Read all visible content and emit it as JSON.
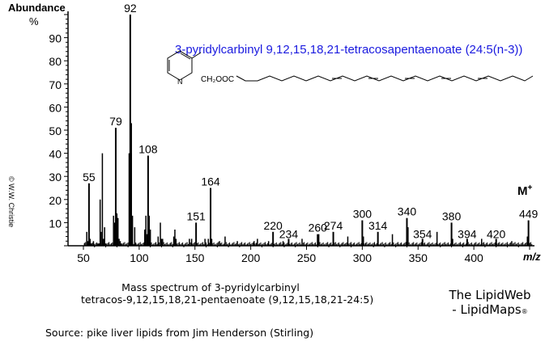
{
  "chart_data": {
    "type": "bar",
    "title": "3-pyridylcarbinyl 9,12,15,18,21-tetracosapentaenoate (24:5(n-3))",
    "xlabel": "m/z",
    "ylabel": "Abundance %",
    "xlim": [
      40,
      460
    ],
    "ylim": [
      0,
      100
    ],
    "xticks": [
      50,
      100,
      150,
      200,
      250,
      300,
      350,
      400
    ],
    "yticks": [
      10,
      20,
      30,
      40,
      50,
      60,
      70,
      80,
      90
    ],
    "grid": false,
    "molecular_ion_label": "M+",
    "labeled_peaks": [
      {
        "mz": 55,
        "abundance": 27
      },
      {
        "mz": 79,
        "abundance": 51
      },
      {
        "mz": 92,
        "abundance": 100
      },
      {
        "mz": 108,
        "abundance": 39
      },
      {
        "mz": 151,
        "abundance": 10
      },
      {
        "mz": 164,
        "abundance": 25
      },
      {
        "mz": 220,
        "abundance": 6
      },
      {
        "mz": 234,
        "abundance": 3
      },
      {
        "mz": 260,
        "abundance": 5
      },
      {
        "mz": 274,
        "abundance": 6
      },
      {
        "mz": 300,
        "abundance": 11
      },
      {
        "mz": 314,
        "abundance": 6
      },
      {
        "mz": 340,
        "abundance": 12
      },
      {
        "mz": 354,
        "abundance": 3
      },
      {
        "mz": 380,
        "abundance": 10
      },
      {
        "mz": 394,
        "abundance": 3
      },
      {
        "mz": 420,
        "abundance": 3
      },
      {
        "mz": 449,
        "abundance": 11
      }
    ],
    "other_peaks": [
      {
        "mz": 51,
        "abundance": 1
      },
      {
        "mz": 53,
        "abundance": 6
      },
      {
        "mz": 54,
        "abundance": 2
      },
      {
        "mz": 56,
        "abundance": 3
      },
      {
        "mz": 57,
        "abundance": 1
      },
      {
        "mz": 59,
        "abundance": 2
      },
      {
        "mz": 63,
        "abundance": 1
      },
      {
        "mz": 64,
        "abundance": 1
      },
      {
        "mz": 65,
        "abundance": 20
      },
      {
        "mz": 66,
        "abundance": 6
      },
      {
        "mz": 67,
        "abundance": 40
      },
      {
        "mz": 68,
        "abundance": 3
      },
      {
        "mz": 69,
        "abundance": 8
      },
      {
        "mz": 70,
        "abundance": 1
      },
      {
        "mz": 77,
        "abundance": 13
      },
      {
        "mz": 78,
        "abundance": 10
      },
      {
        "mz": 80,
        "abundance": 14
      },
      {
        "mz": 81,
        "abundance": 12
      },
      {
        "mz": 82,
        "abundance": 3
      },
      {
        "mz": 83,
        "abundance": 2
      },
      {
        "mz": 84,
        "abundance": 1
      },
      {
        "mz": 91,
        "abundance": 40
      },
      {
        "mz": 93,
        "abundance": 53
      },
      {
        "mz": 94,
        "abundance": 13
      },
      {
        "mz": 96,
        "abundance": 8
      },
      {
        "mz": 97,
        "abundance": 1
      },
      {
        "mz": 105,
        "abundance": 7
      },
      {
        "mz": 106,
        "abundance": 13
      },
      {
        "mz": 107,
        "abundance": 5
      },
      {
        "mz": 109,
        "abundance": 13
      },
      {
        "mz": 110,
        "abundance": 7
      },
      {
        "mz": 117,
        "abundance": 4
      },
      {
        "mz": 119,
        "abundance": 10
      },
      {
        "mz": 120,
        "abundance": 3
      },
      {
        "mz": 121,
        "abundance": 3
      },
      {
        "mz": 131,
        "abundance": 4
      },
      {
        "mz": 132,
        "abundance": 7
      },
      {
        "mz": 133,
        "abundance": 3
      },
      {
        "mz": 145,
        "abundance": 3
      },
      {
        "mz": 147,
        "abundance": 3
      },
      {
        "mz": 159,
        "abundance": 3
      },
      {
        "mz": 162,
        "abundance": 3
      },
      {
        "mz": 165,
        "abundance": 3
      },
      {
        "mz": 172,
        "abundance": 2
      },
      {
        "mz": 177,
        "abundance": 4
      },
      {
        "mz": 188,
        "abundance": 2
      },
      {
        "mz": 203,
        "abundance": 2
      },
      {
        "mz": 206,
        "abundance": 3
      },
      {
        "mz": 216,
        "abundance": 2
      },
      {
        "mz": 229,
        "abundance": 2
      },
      {
        "mz": 246,
        "abundance": 3
      },
      {
        "mz": 261,
        "abundance": 5
      },
      {
        "mz": 287,
        "abundance": 4
      },
      {
        "mz": 301,
        "abundance": 4
      },
      {
        "mz": 327,
        "abundance": 5
      },
      {
        "mz": 341,
        "abundance": 8
      },
      {
        "mz": 367,
        "abundance": 6
      },
      {
        "mz": 381,
        "abundance": 3
      },
      {
        "mz": 407,
        "abundance": 3
      },
      {
        "mz": 434,
        "abundance": 2
      },
      {
        "mz": 448,
        "abundance": 4
      },
      {
        "mz": 450,
        "abundance": 1
      }
    ]
  },
  "header": {
    "ylabel": "Abundance",
    "ypct": "%",
    "copyright": "© W.W. Christie",
    "mz_label": "m/z",
    "mplus": "M",
    "mplus_sup": "+"
  },
  "structure": {
    "group_label": "CH₂OOC",
    "nitrogen": "N"
  },
  "caption": {
    "line1": "Mass spectrum of 3-pyridylcarbinyl",
    "line2": "tetracos-9,12,15,18,21-pentaenoate (9,12,15,18,21-24:5)",
    "source": "Source: pike liver lipids from Jim Henderson (Stirling)"
  },
  "brand": {
    "line1": "The LipidWeb",
    "line2": "- LipidMaps",
    "reg": "®"
  }
}
